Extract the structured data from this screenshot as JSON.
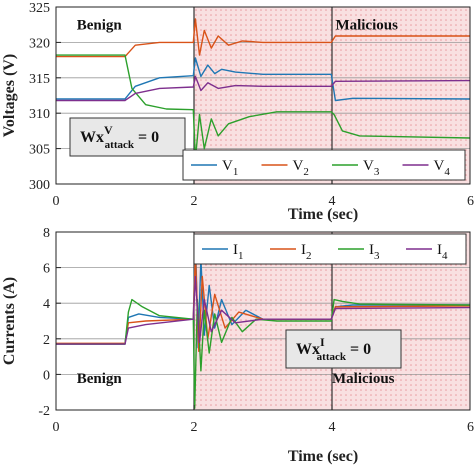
{
  "chart_data": [
    {
      "type": "line",
      "title": "",
      "xlabel": "Time (sec)",
      "ylabel": "Voltages (V)",
      "xlim": [
        0,
        6
      ],
      "ylim": [
        300,
        325
      ],
      "xticks": [
        "0",
        "2",
        "4",
        "6"
      ],
      "yticks": [
        "300",
        "305",
        "310",
        "315",
        "320",
        "325"
      ],
      "grid": true,
      "legend_placement": "bottom-right",
      "shaded_region": {
        "x_range": [
          2,
          6
        ],
        "label": "Malicious",
        "color": "#f4c6c8"
      },
      "annotations": [
        {
          "text": "Benign",
          "x": 0.3,
          "y": 322.5
        },
        {
          "text": "Malicious",
          "x": 4.05,
          "y": 322.5
        }
      ],
      "attack_box": {
        "prefix": "Wx",
        "sup": "V",
        "sub": "attack",
        "suffix": " = 0"
      },
      "series": [
        {
          "name": "V",
          "sub": "1",
          "color": "#1f77b4",
          "points": [
            [
              0,
              312
            ],
            [
              1,
              312
            ],
            [
              1.15,
              313.8
            ],
            [
              1.5,
              315
            ],
            [
              1.99,
              315.3
            ],
            [
              2.02,
              317.8
            ],
            [
              2.1,
              315.2
            ],
            [
              2.2,
              316.8
            ],
            [
              2.3,
              315.6
            ],
            [
              2.4,
              316.2
            ],
            [
              2.6,
              315.8
            ],
            [
              3,
              315.5
            ],
            [
              3.99,
              315.5
            ],
            [
              4.05,
              311.8
            ],
            [
              4.3,
              312.1
            ],
            [
              6,
              312
            ]
          ]
        },
        {
          "name": "V",
          "sub": "2",
          "color": "#d95319",
          "points": [
            [
              0,
              318
            ],
            [
              1,
              318
            ],
            [
              1.15,
              319.6
            ],
            [
              1.5,
              320
            ],
            [
              1.99,
              320
            ],
            [
              2.02,
              323.3
            ],
            [
              2.08,
              318.2
            ],
            [
              2.15,
              321.7
            ],
            [
              2.25,
              319.2
            ],
            [
              2.35,
              320.9
            ],
            [
              2.5,
              319.6
            ],
            [
              2.7,
              320.2
            ],
            [
              3,
              320
            ],
            [
              3.99,
              320
            ],
            [
              4.05,
              320.9
            ],
            [
              6,
              320.9
            ]
          ]
        },
        {
          "name": "V",
          "sub": "3",
          "color": "#2ca02c",
          "points": [
            [
              0,
              318.2
            ],
            [
              1,
              318.2
            ],
            [
              1.1,
              313.5
            ],
            [
              1.3,
              311.2
            ],
            [
              1.6,
              310.6
            ],
            [
              1.99,
              310.5
            ],
            [
              2.02,
              303.5
            ],
            [
              2.08,
              309.8
            ],
            [
              2.15,
              305
            ],
            [
              2.25,
              309.2
            ],
            [
              2.35,
              306.8
            ],
            [
              2.5,
              308.5
            ],
            [
              2.8,
              309.5
            ],
            [
              3.2,
              310.2
            ],
            [
              3.99,
              310.2
            ],
            [
              4.03,
              309.8
            ],
            [
              4.15,
              307.5
            ],
            [
              4.4,
              306.8
            ],
            [
              6,
              306.5
            ]
          ]
        },
        {
          "name": "V",
          "sub": "4",
          "color": "#7e2f8e",
          "points": [
            [
              0,
              311.8
            ],
            [
              1,
              311.8
            ],
            [
              1.15,
              312.8
            ],
            [
              1.5,
              313.5
            ],
            [
              1.99,
              313.7
            ],
            [
              2.02,
              315.2
            ],
            [
              2.1,
              313.2
            ],
            [
              2.2,
              314.3
            ],
            [
              2.35,
              313.5
            ],
            [
              2.6,
              313.9
            ],
            [
              3,
              313.8
            ],
            [
              3.99,
              313.8
            ],
            [
              4.05,
              314.5
            ],
            [
              6,
              314.6
            ]
          ]
        }
      ]
    },
    {
      "type": "line",
      "title": "",
      "xlabel": "Time (sec)",
      "ylabel": "Currents (A)",
      "xlim": [
        0,
        6
      ],
      "ylim": [
        -2,
        8
      ],
      "xticks": [
        "0",
        "2",
        "4",
        "6"
      ],
      "yticks": [
        "-2",
        "0",
        "2",
        "4",
        "6",
        "8"
      ],
      "grid": true,
      "legend_placement": "top-right",
      "shaded_region": {
        "x_range": [
          2,
          6
        ],
        "label": "Malicious",
        "color": "#f4c6c8"
      },
      "annotations": [
        {
          "text": "Benign",
          "x": 0.3,
          "y": -0.2
        },
        {
          "text": "Malicious",
          "x": 4,
          "y": -0.2
        }
      ],
      "attack_box": {
        "prefix": "Wx",
        "sup": "I",
        "sub": "attack",
        "suffix": " = 0"
      },
      "series": [
        {
          "name": "I",
          "sub": "1",
          "color": "#1f77b4",
          "points": [
            [
              0,
              1.7
            ],
            [
              1,
              1.7
            ],
            [
              1.05,
              3.2
            ],
            [
              1.2,
              3.4
            ],
            [
              1.5,
              3.2
            ],
            [
              1.99,
              3.1
            ],
            [
              2.02,
              7.8
            ],
            [
              2.06,
              1.5
            ],
            [
              2.1,
              6.5
            ],
            [
              2.15,
              2.2
            ],
            [
              2.22,
              5
            ],
            [
              2.3,
              2.6
            ],
            [
              2.4,
              4.2
            ],
            [
              2.55,
              2.8
            ],
            [
              2.75,
              3.6
            ],
            [
              3,
              3.1
            ],
            [
              3.99,
              3.1
            ],
            [
              4.05,
              3.8
            ],
            [
              4.3,
              3.9
            ],
            [
              6,
              3.9
            ]
          ]
        },
        {
          "name": "I",
          "sub": "2",
          "color": "#d95319",
          "points": [
            [
              0,
              1.75
            ],
            [
              1,
              1.75
            ],
            [
              1.05,
              2.9
            ],
            [
              1.3,
              3
            ],
            [
              1.99,
              3.1
            ],
            [
              2.02,
              6.8
            ],
            [
              2.07,
              1.3
            ],
            [
              2.12,
              5.5
            ],
            [
              2.2,
              2
            ],
            [
              2.3,
              4.5
            ],
            [
              2.45,
              2.6
            ],
            [
              2.65,
              3.5
            ],
            [
              3,
              3.1
            ],
            [
              3.99,
              3.1
            ],
            [
              4.05,
              3.8
            ],
            [
              6,
              3.85
            ]
          ]
        },
        {
          "name": "I",
          "sub": "3",
          "color": "#2ca02c",
          "points": [
            [
              0,
              1.7
            ],
            [
              1,
              1.7
            ],
            [
              1.05,
              3.5
            ],
            [
              1.1,
              4.2
            ],
            [
              1.25,
              3.8
            ],
            [
              1.5,
              3.3
            ],
            [
              1.99,
              3.1
            ],
            [
              2.01,
              -1.9
            ],
            [
              2.05,
              4.2
            ],
            [
              2.1,
              0.2
            ],
            [
              2.15,
              3.6
            ],
            [
              2.22,
              1.2
            ],
            [
              2.3,
              3.4
            ],
            [
              2.4,
              1.8
            ],
            [
              2.55,
              3.2
            ],
            [
              2.7,
              2.4
            ],
            [
              2.9,
              3.1
            ],
            [
              3.2,
              3
            ],
            [
              3.99,
              3
            ],
            [
              4.03,
              4.2
            ],
            [
              4.15,
              4.1
            ],
            [
              4.4,
              3.95
            ],
            [
              6,
              3.9
            ]
          ]
        },
        {
          "name": "I",
          "sub": "4",
          "color": "#7e2f8e",
          "points": [
            [
              0,
              1.7
            ],
            [
              1,
              1.7
            ],
            [
              1.05,
              2.6
            ],
            [
              1.3,
              2.8
            ],
            [
              1.99,
              3.1
            ],
            [
              2.02,
              5.5
            ],
            [
              2.08,
              1.8
            ],
            [
              2.15,
              4.2
            ],
            [
              2.25,
              2.4
            ],
            [
              2.4,
              3.6
            ],
            [
              2.6,
              2.9
            ],
            [
              3,
              3.1
            ],
            [
              3.99,
              3.1
            ],
            [
              4.05,
              3.7
            ],
            [
              6,
              3.75
            ]
          ]
        }
      ]
    }
  ]
}
